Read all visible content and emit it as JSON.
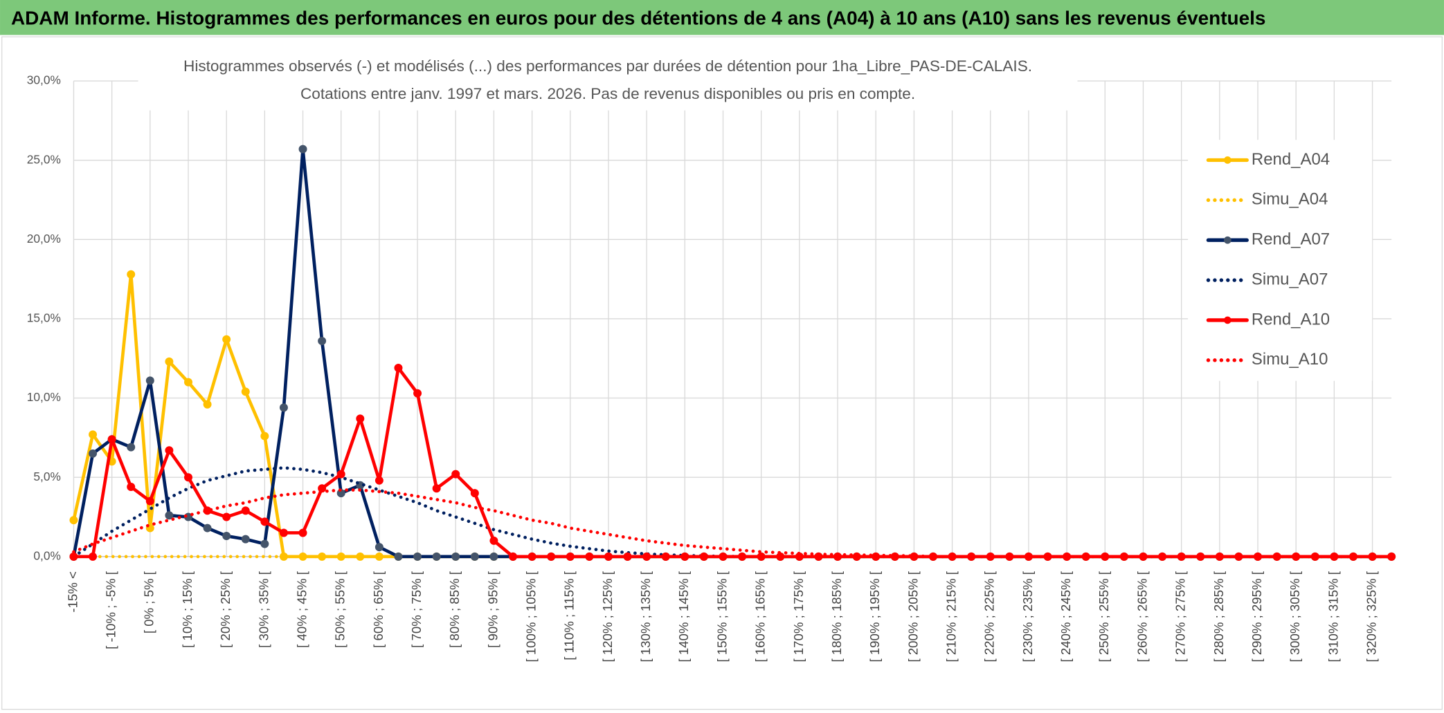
{
  "page_title": "ADAM Informe. Histogrammes des performances en euros pour des détentions de 4 ans (A04) à 10 ans (A10) sans les revenus éventuels",
  "chart_data": {
    "type": "line",
    "title": "Histogrammes observés (-) et modélisés (...) des performances par durées de détention pour 1ha_Libre_PAS-DE-CALAIS.",
    "subtitle": "Cotations entre janv. 1997 et mars. 2026. Pas de revenus disponibles ou pris en compte.",
    "categories": [
      "-15% <",
      null,
      "[ -10% ; -5% [",
      null,
      "[ 0% ; 5% [",
      null,
      "[ 10% ; 15% [",
      null,
      "[ 20% ; 25% [",
      null,
      "[ 30% ; 35% [",
      null,
      "[ 40% ; 45% [",
      null,
      "[ 50% ; 55% [",
      null,
      "[ 60% ; 65% [",
      null,
      "[ 70% ; 75% [",
      null,
      "[ 80% ; 85% [",
      null,
      "[ 90% ; 95% [",
      null,
      "[ 100% ; 105% [",
      null,
      "[ 110% ; 115% [",
      null,
      "[ 120% ; 125% [",
      null,
      "[ 130% ; 135% [",
      null,
      "[ 140% ; 145% [",
      null,
      "[ 150% ; 155% [",
      null,
      "[ 160% ; 165% [",
      null,
      "[ 170% ; 175% [",
      null,
      "[ 180% ; 185% [",
      null,
      "[ 190% ; 195% [",
      null,
      "[ 200% ; 205% [",
      null,
      "[ 210% ; 215% [",
      null,
      "[ 220% ; 225% [",
      null,
      "[ 230% ; 235% [",
      null,
      "[ 240% ; 245% [",
      null,
      "[ 250% ; 255% [",
      null,
      "[ 260% ; 265% [",
      null,
      "[ 270% ; 275% [",
      null,
      "[ 280% ; 285% [",
      null,
      "[ 290% ; 295% [",
      null,
      "[ 300% ; 305% [",
      null,
      "[ 310% ; 315% [",
      null,
      "[ 320% ; 325% [",
      null
    ],
    "series": [
      {
        "name": "Rend_A04",
        "color": "#FFC000",
        "line_style": "solid",
        "markers": true,
        "values": [
          2.3,
          7.7,
          6.0,
          17.8,
          1.8,
          12.3,
          11.0,
          9.6,
          13.7,
          10.4,
          7.6,
          0,
          0,
          0,
          0,
          0,
          0,
          0,
          0,
          0,
          0,
          0,
          0,
          0,
          0,
          0,
          0,
          0,
          0,
          0,
          0,
          0,
          0,
          0,
          0,
          0,
          0,
          0,
          0,
          0,
          0,
          0,
          0,
          0,
          0,
          0,
          0,
          0,
          0,
          0,
          0,
          0,
          0,
          0,
          0,
          0,
          0,
          0,
          0,
          0,
          0,
          0,
          0,
          0,
          0,
          0,
          0,
          0,
          0,
          0
        ]
      },
      {
        "name": "Simu_A04",
        "color": "#FFC000",
        "line_style": "dotted",
        "markers": false,
        "values": [
          0,
          0,
          0,
          0,
          0,
          0,
          0,
          0,
          0,
          0,
          0,
          0,
          0,
          0,
          0,
          0,
          0,
          0,
          0,
          0,
          0,
          0,
          0,
          0,
          0,
          0,
          0,
          0,
          0,
          0,
          0,
          0,
          0,
          0,
          0,
          0,
          0,
          0,
          0,
          0,
          0,
          0,
          0,
          0,
          0,
          0,
          0,
          0,
          0,
          0,
          0,
          0,
          0,
          0,
          0,
          0,
          0,
          0,
          0,
          0,
          0,
          0,
          0,
          0,
          0,
          0,
          0,
          0,
          0,
          0
        ]
      },
      {
        "name": "Rend_A07",
        "color": "#002060",
        "marker_color": "#44546A",
        "line_style": "solid",
        "markers": true,
        "values": [
          0,
          6.5,
          7.4,
          6.9,
          11.1,
          2.6,
          2.5,
          1.8,
          1.3,
          1.1,
          0.8,
          9.4,
          25.7,
          13.6,
          4.0,
          4.5,
          0.6,
          0,
          0,
          0,
          0,
          0,
          0,
          0,
          0,
          0,
          0,
          0,
          0,
          0,
          0,
          0,
          0,
          0,
          0,
          0,
          0,
          0,
          0,
          0,
          0,
          0,
          0,
          0,
          0,
          0,
          0,
          0,
          0,
          0,
          0,
          0,
          0,
          0,
          0,
          0,
          0,
          0,
          0,
          0,
          0,
          0,
          0,
          0,
          0,
          0,
          0,
          0,
          0,
          0
        ]
      },
      {
        "name": "Simu_A07",
        "color": "#002060",
        "line_style": "dotted",
        "markers": false,
        "values": [
          0,
          0.8,
          1.6,
          2.3,
          3.0,
          3.7,
          4.3,
          4.8,
          5.1,
          5.4,
          5.5,
          5.6,
          5.5,
          5.3,
          5.0,
          4.6,
          4.2,
          3.8,
          3.4,
          2.9,
          2.5,
          2.1,
          1.7,
          1.4,
          1.1,
          0.85,
          0.65,
          0.5,
          0.35,
          0.25,
          0.17,
          0.11,
          0.07,
          0.04,
          0.02,
          0,
          0,
          0,
          0,
          0,
          0,
          0,
          0,
          0,
          0,
          0,
          0,
          0,
          0,
          0,
          0,
          0,
          0,
          0,
          0,
          0,
          0,
          0,
          0,
          0,
          0,
          0,
          0,
          0,
          0,
          0,
          0,
          0,
          0,
          0
        ]
      },
      {
        "name": "Rend_A10",
        "color": "#FF0000",
        "line_style": "solid",
        "markers": true,
        "values": [
          0,
          0,
          7.4,
          4.4,
          3.5,
          6.7,
          5.0,
          2.9,
          2.5,
          2.9,
          2.2,
          1.5,
          1.5,
          4.3,
          5.2,
          8.7,
          4.8,
          11.9,
          10.3,
          4.3,
          5.2,
          4.0,
          1.0,
          0,
          0,
          0,
          0,
          0,
          0,
          0,
          0,
          0,
          0,
          0,
          0,
          0,
          0,
          0,
          0,
          0,
          0,
          0,
          0,
          0,
          0,
          0,
          0,
          0,
          0,
          0,
          0,
          0,
          0,
          0,
          0,
          0,
          0,
          0,
          0,
          0,
          0,
          0,
          0,
          0,
          0,
          0,
          0,
          0,
          0,
          0
        ]
      },
      {
        "name": "Simu_A10",
        "color": "#FF0000",
        "line_style": "dotted",
        "markers": false,
        "values": [
          0.3,
          0.8,
          1.2,
          1.6,
          2.0,
          2.3,
          2.6,
          2.9,
          3.2,
          3.4,
          3.7,
          3.9,
          4.0,
          4.1,
          4.2,
          4.2,
          4.1,
          4.0,
          3.8,
          3.6,
          3.4,
          3.1,
          2.9,
          2.6,
          2.3,
          2.1,
          1.8,
          1.6,
          1.4,
          1.2,
          1.0,
          0.85,
          0.7,
          0.6,
          0.5,
          0.4,
          0.3,
          0.25,
          0.2,
          0.15,
          0.12,
          0.1,
          0.08,
          0.06,
          0.05,
          0,
          0,
          0,
          0,
          0,
          0,
          0,
          0,
          0,
          0,
          0,
          0,
          0,
          0,
          0,
          0,
          0,
          0,
          0,
          0,
          0,
          0,
          0,
          0,
          0
        ]
      }
    ],
    "ylim": [
      0,
      30
    ],
    "yticks": [
      {
        "value": 0,
        "label": "0,0%"
      },
      {
        "value": 5,
        "label": "5,0%"
      },
      {
        "value": 10,
        "label": "10,0%"
      },
      {
        "value": 15,
        "label": "15,0%"
      },
      {
        "value": 20,
        "label": "20,0%"
      },
      {
        "value": 25,
        "label": "25,0%"
      },
      {
        "value": 30,
        "label": "30,0%"
      }
    ],
    "grid": true,
    "legend": "right"
  }
}
